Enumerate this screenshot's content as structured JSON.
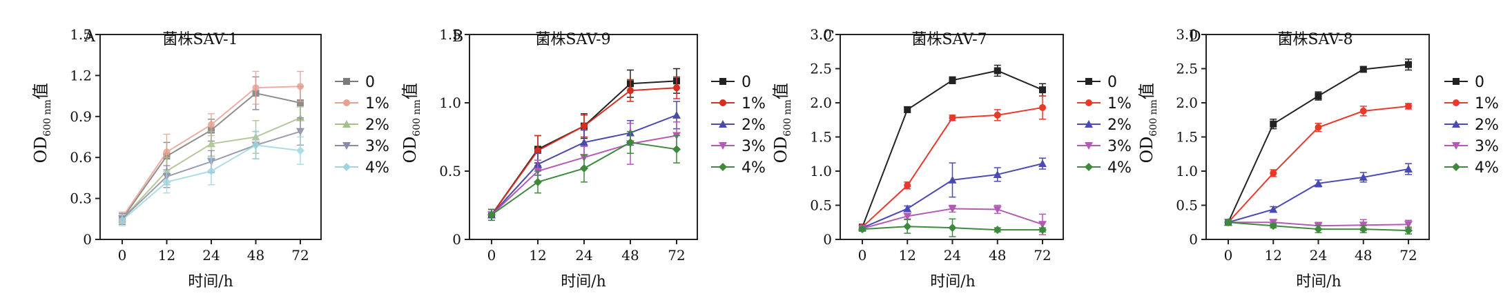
{
  "chart_data": [
    {
      "type": "line",
      "panel": "A",
      "title": "菌株SAV-1",
      "xlabel": "时间/h",
      "ylabel": "OD",
      "ylabel_sub": "600 nm",
      "ylabel_suffix": "值",
      "categories": [
        "0",
        "12",
        "24",
        "48",
        "72"
      ],
      "ylim": [
        0,
        1.5
      ],
      "yticks": [
        0,
        0.3,
        0.6,
        0.9,
        1.2,
        1.5
      ],
      "ytick_labels": [
        "0",
        "0.3",
        "0.6",
        "0.9",
        "1.2",
        "1.5"
      ],
      "faded": true,
      "legend": "right",
      "series": [
        {
          "name": "0",
          "color": "#7a7a7a",
          "marker": "square",
          "values": [
            0.15,
            0.61,
            0.8,
            1.07,
            1.0
          ],
          "err": [
            0.04,
            0.1,
            0.08,
            0.12,
            0.12
          ]
        },
        {
          "name": "1%",
          "color": "#e8a090",
          "marker": "circle",
          "values": [
            0.16,
            0.64,
            0.84,
            1.11,
            1.12
          ],
          "err": [
            0.04,
            0.13,
            0.08,
            0.12,
            0.11
          ]
        },
        {
          "name": "2%",
          "color": "#a6c08a",
          "marker": "triangle",
          "values": [
            0.15,
            0.5,
            0.7,
            0.75,
            0.89
          ],
          "err": [
            0.04,
            0.1,
            0.09,
            0.12,
            0.08
          ]
        },
        {
          "name": "3%",
          "color": "#8a8aa8",
          "marker": "triangle-down",
          "values": [
            0.15,
            0.46,
            0.57,
            0.69,
            0.79
          ],
          "err": [
            0.04,
            0.08,
            0.08,
            0.1,
            0.1
          ]
        },
        {
          "name": "4%",
          "color": "#9ed6e0",
          "marker": "diamond",
          "values": [
            0.14,
            0.42,
            0.5,
            0.69,
            0.65
          ],
          "err": [
            0.04,
            0.08,
            0.1,
            0.1,
            0.1
          ]
        }
      ]
    },
    {
      "type": "line",
      "panel": "B",
      "title": "菌株SAV-9",
      "xlabel": "时间/h",
      "ylabel": "OD",
      "ylabel_sub": "600 nm",
      "ylabel_suffix": "值",
      "categories": [
        "0",
        "12",
        "24",
        "48",
        "72"
      ],
      "ylim": [
        0,
        1.5
      ],
      "yticks": [
        0,
        0.5,
        1.0,
        1.5
      ],
      "ytick_labels": [
        "0",
        "0.5",
        "1.0",
        "1.5"
      ],
      "faded": false,
      "legend": "right",
      "series": [
        {
          "name": "0",
          "color": "#222222",
          "marker": "square",
          "values": [
            0.18,
            0.66,
            0.83,
            1.14,
            1.16
          ],
          "err": [
            0.04,
            0.1,
            0.09,
            0.1,
            0.09
          ]
        },
        {
          "name": "1%",
          "color": "#d62d20",
          "marker": "circle",
          "values": [
            0.18,
            0.65,
            0.83,
            1.09,
            1.11
          ],
          "err": [
            0.04,
            0.11,
            0.08,
            0.08,
            0.08
          ]
        },
        {
          "name": "2%",
          "color": "#4a4aa8",
          "marker": "triangle",
          "values": [
            0.18,
            0.55,
            0.71,
            0.78,
            0.91
          ],
          "err": [
            0.04,
            0.08,
            0.09,
            0.09,
            0.1
          ]
        },
        {
          "name": "3%",
          "color": "#b25ab4",
          "marker": "triangle-down",
          "values": [
            0.18,
            0.5,
            0.6,
            0.7,
            0.76
          ],
          "err": [
            0.04,
            0.08,
            0.08,
            0.15,
            0.1
          ]
        },
        {
          "name": "4%",
          "color": "#3d8a3d",
          "marker": "diamond",
          "values": [
            0.18,
            0.42,
            0.52,
            0.71,
            0.66
          ],
          "err": [
            0.04,
            0.08,
            0.1,
            0.08,
            0.1
          ]
        }
      ]
    },
    {
      "type": "line",
      "panel": "C",
      "title": "菌株SAV-7",
      "xlabel": "时间/h",
      "ylabel": "OD",
      "ylabel_sub": "600 nm",
      "ylabel_suffix": "值",
      "categories": [
        "0",
        "12",
        "24",
        "48",
        "72"
      ],
      "ylim": [
        0,
        3.0
      ],
      "yticks": [
        0,
        0.5,
        1.0,
        1.5,
        2.0,
        2.5,
        3.0
      ],
      "ytick_labels": [
        "0",
        "0.5",
        "1.0",
        "1.5",
        "2.0",
        "2.5",
        "3.0"
      ],
      "faded": false,
      "legend": "right",
      "series": [
        {
          "name": "0",
          "color": "#222222",
          "marker": "square",
          "values": [
            0.18,
            1.9,
            2.33,
            2.47,
            2.19
          ],
          "err": [
            0.03,
            0.04,
            0.05,
            0.08,
            0.09
          ]
        },
        {
          "name": "1%",
          "color": "#e8392b",
          "marker": "circle",
          "values": [
            0.18,
            0.79,
            1.78,
            1.82,
            1.93
          ],
          "err": [
            0.03,
            0.05,
            0.04,
            0.08,
            0.17
          ]
        },
        {
          "name": "2%",
          "color": "#4a4ab4",
          "marker": "triangle",
          "values": [
            0.17,
            0.45,
            0.87,
            0.95,
            1.11
          ],
          "err": [
            0.03,
            0.04,
            0.25,
            0.1,
            0.08
          ]
        },
        {
          "name": "3%",
          "color": "#b25ab4",
          "marker": "triangle-down",
          "values": [
            0.16,
            0.34,
            0.45,
            0.44,
            0.22
          ],
          "err": [
            0.03,
            0.04,
            0.05,
            0.06,
            0.15
          ]
        },
        {
          "name": "4%",
          "color": "#3d8a3d",
          "marker": "diamond",
          "values": [
            0.15,
            0.19,
            0.17,
            0.14,
            0.14
          ],
          "err": [
            0.03,
            0.1,
            0.13,
            0.03,
            0.03
          ]
        }
      ]
    },
    {
      "type": "line",
      "panel": "D",
      "title": "菌株SAV-8",
      "xlabel": "时间/h",
      "ylabel": "OD",
      "ylabel_sub": "600 nm",
      "ylabel_suffix": "值",
      "categories": [
        "0",
        "12",
        "24",
        "48",
        "72"
      ],
      "ylim": [
        0,
        3.0
      ],
      "yticks": [
        0,
        0.5,
        1.0,
        1.5,
        2.0,
        2.5,
        3.0
      ],
      "ytick_labels": [
        "0",
        "0.5",
        "1.0",
        "1.5",
        "2.0",
        "2.5",
        "3.0"
      ],
      "faded": false,
      "legend": "right",
      "series": [
        {
          "name": "0",
          "color": "#222222",
          "marker": "square",
          "values": [
            0.25,
            1.69,
            2.1,
            2.49,
            2.56
          ],
          "err": [
            0.04,
            0.07,
            0.06,
            0.04,
            0.08
          ]
        },
        {
          "name": "1%",
          "color": "#e8392b",
          "marker": "circle",
          "values": [
            0.25,
            0.97,
            1.64,
            1.88,
            1.95
          ],
          "err": [
            0.04,
            0.05,
            0.06,
            0.07,
            0.04
          ]
        },
        {
          "name": "2%",
          "color": "#4a4ab4",
          "marker": "triangle",
          "values": [
            0.25,
            0.44,
            0.82,
            0.91,
            1.03
          ],
          "err": [
            0.04,
            0.04,
            0.05,
            0.07,
            0.08
          ]
        },
        {
          "name": "3%",
          "color": "#b25ab4",
          "marker": "triangle-down",
          "values": [
            0.25,
            0.25,
            0.2,
            0.21,
            0.22
          ],
          "err": [
            0.04,
            0.03,
            0.05,
            0.08,
            0.06
          ]
        },
        {
          "name": "4%",
          "color": "#3d8a3d",
          "marker": "diamond",
          "values": [
            0.25,
            0.2,
            0.15,
            0.15,
            0.13
          ],
          "err": [
            0.04,
            0.03,
            0.05,
            0.05,
            0.05
          ]
        }
      ]
    }
  ]
}
